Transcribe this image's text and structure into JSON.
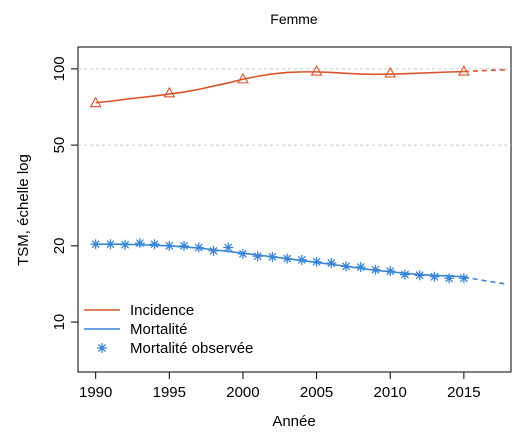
{
  "chart_data": {
    "type": "line",
    "title": "Femme",
    "x_label": "Année",
    "y_label": "TSM, échelle log",
    "log_y": true,
    "xlim": [
      1988.8,
      2018.2
    ],
    "ylim": [
      6.35,
      122
    ],
    "xticks": [
      1990,
      1995,
      2000,
      2005,
      2010,
      2015
    ],
    "yticks": [
      10,
      20,
      50,
      100
    ],
    "grid_at": [
      50,
      100
    ],
    "legend": "bottomleft",
    "x": [
      1990,
      1991,
      1992,
      1993,
      1994,
      1995,
      1996,
      1997,
      1998,
      1999,
      2000,
      2001,
      2002,
      2003,
      2004,
      2005,
      2006,
      2007,
      2008,
      2009,
      2010,
      2011,
      2012,
      2013,
      2014,
      2015
    ],
    "series": [
      {
        "name": "Incidence",
        "color": "#d9542b",
        "marker": "none",
        "values": [
          73.5,
          74.5,
          75.8,
          77,
          78.2,
          79.5,
          81,
          83,
          85.5,
          88,
          91,
          93.5,
          95.5,
          96.8,
          97.3,
          97.3,
          96.8,
          96,
          95.4,
          95.2,
          95.3,
          95.7,
          96.2,
          96.7,
          97.2,
          97.6
        ],
        "projection": {
          "x": [
            2015,
            2016,
            2017,
            2018
          ],
          "values": [
            97.6,
            98.2,
            98.8,
            99.3
          ]
        },
        "observed": {
          "marker": "triangle",
          "x": [
            1990,
            1995,
            2000,
            2005,
            2010,
            2015
          ],
          "values": [
            73.5,
            80.4,
            91.3,
            98,
            96.4,
            98
          ]
        }
      },
      {
        "name": "Mortalité",
        "color": "#3a86d4",
        "marker": "none",
        "values": [
          20.3,
          20.3,
          20.3,
          20.2,
          20.1,
          20,
          19.8,
          19.6,
          19.3,
          19.0,
          18.7,
          18.4,
          18.1,
          17.8,
          17.5,
          17.2,
          16.9,
          16.6,
          16.3,
          16.0,
          15.8,
          15.6,
          15.4,
          15.3,
          15.2,
          15.1
        ],
        "projection": {
          "x": [
            2015,
            2016,
            2017,
            2018
          ],
          "values": [
            15.1,
            14.7,
            14.4,
            14.1
          ]
        }
      },
      {
        "name": "Mortalité observée",
        "color": "#3a86d4",
        "marker": "star",
        "line": false,
        "values": [
          20.3,
          20.3,
          20.2,
          20.5,
          20.3,
          20.0,
          20.0,
          19.7,
          19.1,
          19.7,
          18.6,
          18.2,
          18.1,
          17.8,
          17.6,
          17.3,
          17.1,
          16.6,
          16.5,
          16.1,
          15.9,
          15.4,
          15.3,
          15.1,
          14.9,
          14.9
        ]
      }
    ]
  }
}
